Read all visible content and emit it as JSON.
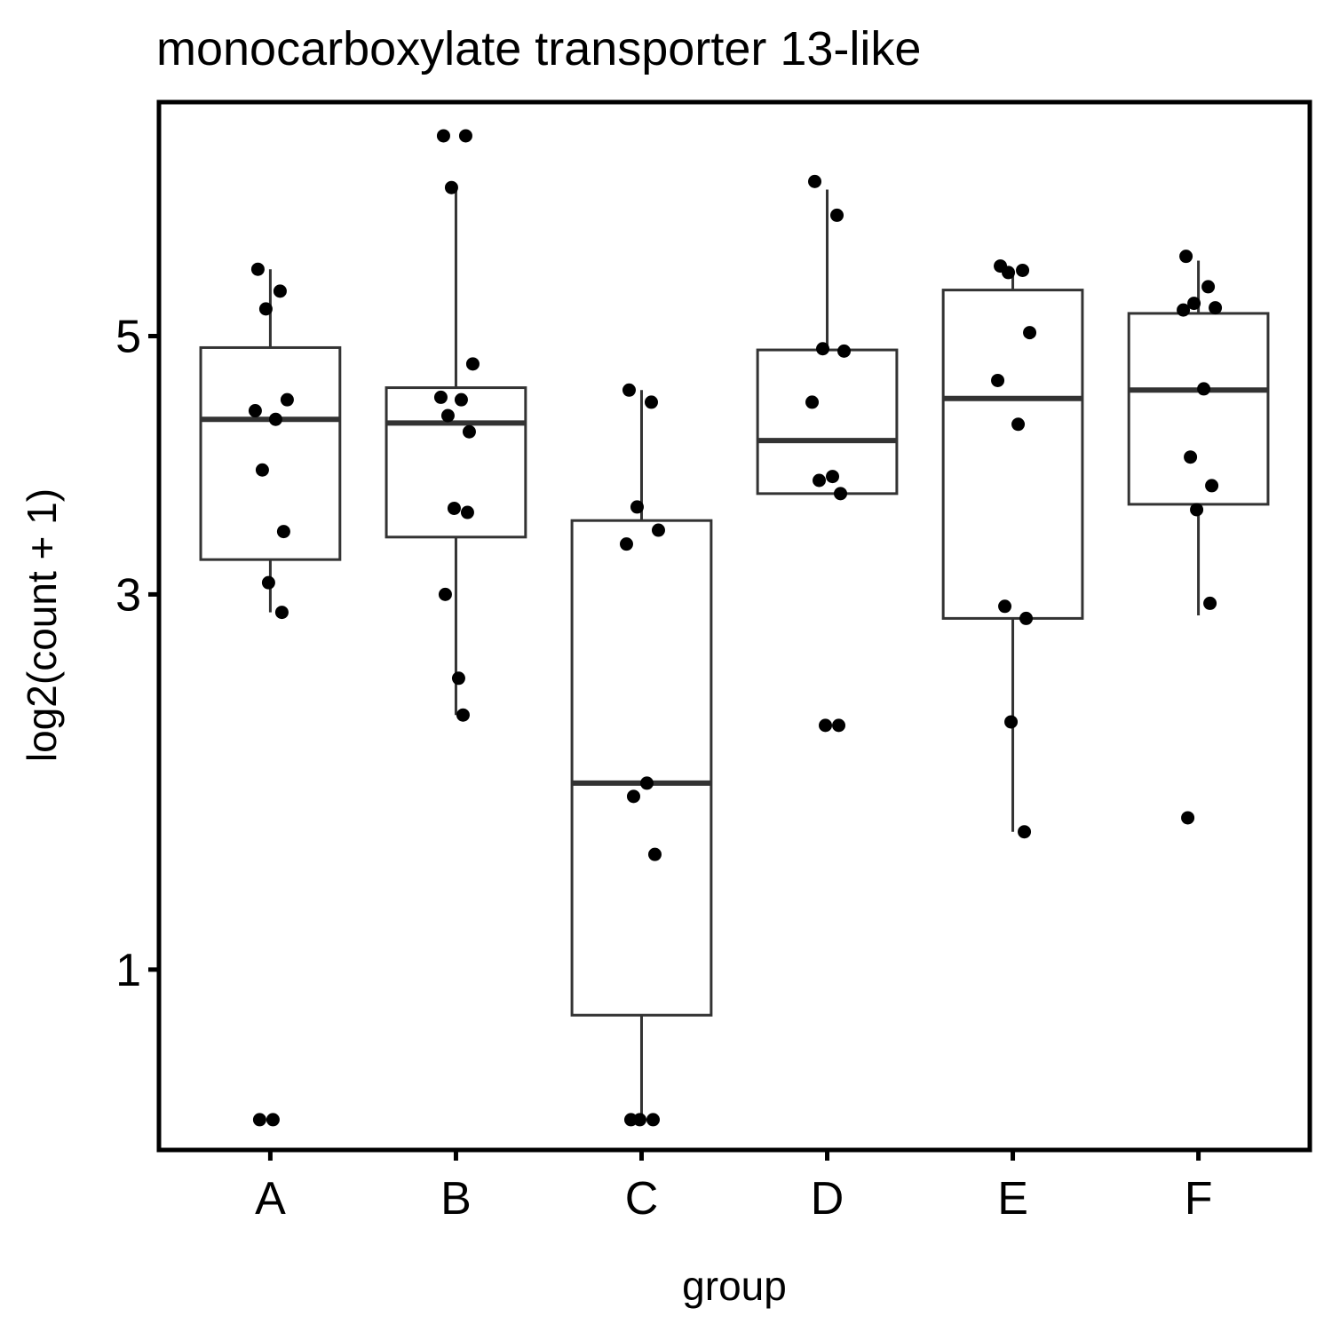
{
  "chart_data": {
    "type": "box",
    "title": "monocarboxylate transporter 13-like",
    "xlabel": "group",
    "ylabel": "log2(count + 1)",
    "y_scale": "sqrt",
    "ylim": [
      0.42,
      7.25
    ],
    "y_ticks": [
      1,
      3,
      5
    ],
    "y_tick_labels": [
      "1",
      "3",
      "5"
    ],
    "categories": [
      "A",
      "B",
      "C",
      "D",
      "E",
      "F"
    ],
    "boxes": [
      {
        "group": "A",
        "whisker_low": 2.88,
        "q1": 3.24,
        "median": 4.3,
        "q3": 4.9,
        "whisker_high": 5.6
      },
      {
        "group": "B",
        "whisker_low": 2.24,
        "q1": 3.4,
        "median": 4.27,
        "q3": 4.56,
        "whisker_high": 6.36
      },
      {
        "group": "C",
        "whisker_low": 0.5,
        "q1": 0.83,
        "median": 1.86,
        "q3": 3.52,
        "whisker_high": 4.54
      },
      {
        "group": "D",
        "whisker_low": 3.72,
        "q1": 3.72,
        "median": 4.13,
        "q3": 4.88,
        "whisker_high": 6.36
      },
      {
        "group": "E",
        "whisker_low": 1.61,
        "q1": 2.84,
        "median": 4.47,
        "q3": 5.41,
        "whisker_high": 5.59
      },
      {
        "group": "F",
        "whisker_low": 2.86,
        "q1": 3.64,
        "median": 4.54,
        "q3": 5.2,
        "whisker_high": 5.68
      }
    ],
    "points": [
      {
        "group": "A",
        "values": [
          5.6,
          5.4,
          5.24,
          4.46,
          4.37,
          4.3,
          3.9,
          3.44,
          3.08,
          2.88,
          0.5,
          0.5
        ]
      },
      {
        "group": "B",
        "values": [
          6.9,
          6.9,
          6.38,
          4.76,
          4.48,
          4.46,
          4.33,
          4.2,
          3.61,
          3.58,
          3.0,
          2.46,
          2.24
        ]
      },
      {
        "group": "C",
        "values": [
          4.54,
          4.44,
          3.62,
          3.45,
          3.35,
          1.86,
          1.79,
          1.5,
          0.5,
          0.5,
          0.5
        ]
      },
      {
        "group": "D",
        "values": [
          6.44,
          6.11,
          4.89,
          4.87,
          4.44,
          3.85,
          3.82,
          3.72,
          2.18,
          2.18
        ]
      },
      {
        "group": "E",
        "values": [
          5.63,
          5.59,
          5.57,
          5.03,
          4.62,
          4.26,
          2.92,
          2.84,
          2.2,
          1.61
        ]
      },
      {
        "group": "F",
        "values": [
          5.72,
          5.44,
          5.29,
          5.25,
          5.23,
          4.55,
          4.0,
          3.78,
          3.6,
          2.94,
          1.68
        ]
      }
    ],
    "grid": false,
    "legend": "none"
  }
}
